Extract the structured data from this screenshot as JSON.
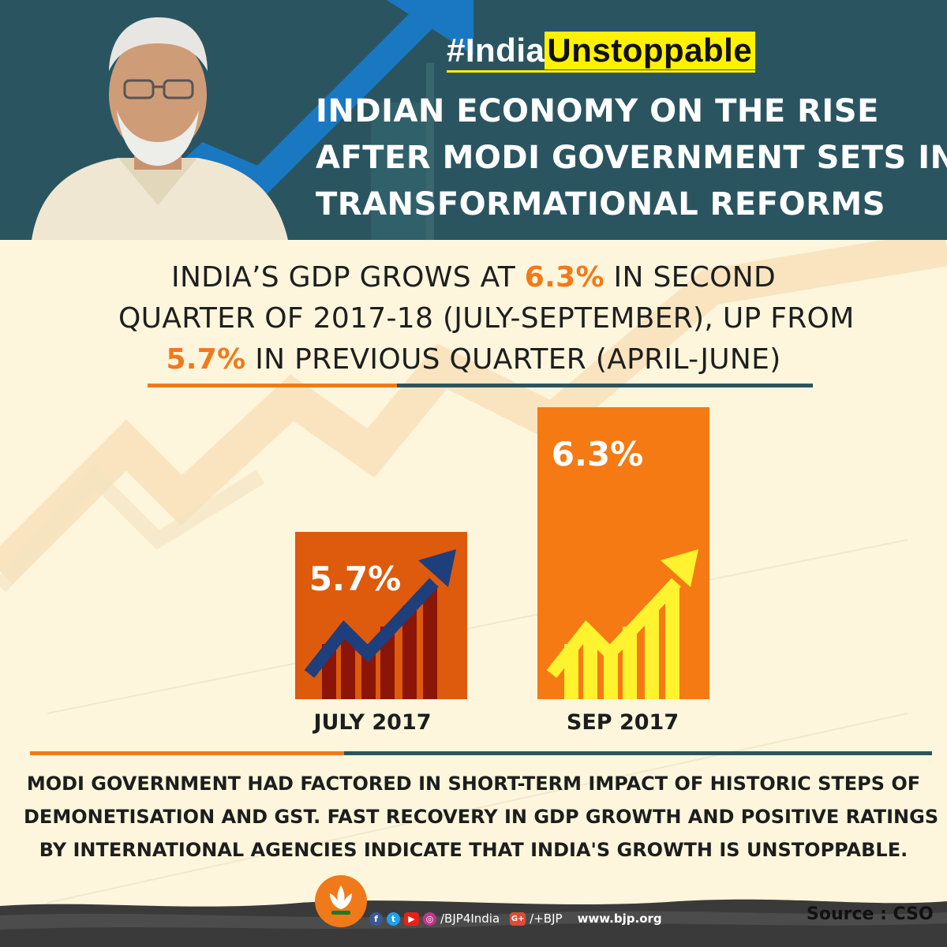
{
  "header": {
    "hashtag_prefix": "#India",
    "hashtag_highlight": "Unstoppable",
    "headline": [
      "INDIAN ECONOMY ON THE RISE",
      "AFTER MODI GOVERNMENT SETS IN",
      "TRANSFORMATIONAL REFORMS"
    ]
  },
  "subhead": {
    "line1_pre": "INDIA’S GDP GROWS AT ",
    "line1_hl": "6.3%",
    "line1_post": " IN SECOND",
    "line2": "QUARTER OF 2017-18 (JULY-SEPTEMBER), UP FROM",
    "line3_hl": "5.7%",
    "line3_post": " IN PREVIOUS QUARTER (APRIL-JUNE)"
  },
  "chart_data": {
    "type": "bar",
    "categories": [
      "JULY 2017",
      "SEP 2017"
    ],
    "values": [
      5.7,
      6.3
    ],
    "value_labels": [
      "5.7%",
      "6.3%"
    ],
    "bar_colors": [
      "#de5a0c",
      "#f57a14"
    ],
    "icon_colors": [
      {
        "bars": "#8b1506",
        "arrow": "#1e3e7c"
      },
      {
        "bars": "#fff22e",
        "arrow": "#fff22e"
      }
    ],
    "title": "",
    "xlabel": "",
    "ylabel": "",
    "grid": false,
    "legend": "none"
  },
  "note": [
    "MODI GOVERNMENT HAD FACTORED IN SHORT-TERM IMPACT OF HISTORIC STEPS OF",
    "DEMONETISATION AND GST. FAST RECOVERY IN GDP GROWTH AND POSITIVE RATINGS",
    "BY INTERNATIONAL AGENCIES INDICATE THAT INDIA'S GROWTH IS UNSTOPPABLE."
  ],
  "footer": {
    "social_icons": [
      "facebook-icon",
      "twitter-icon",
      "youtube-icon",
      "instagram-icon",
      "google-plus-icon"
    ],
    "handle1": "/BJP4India",
    "gplus_glyph": "G+",
    "handle2": "/+BJP",
    "website": "www.bjp.org",
    "source": "Source : CSO"
  },
  "colors": {
    "teal": "#2a5560",
    "orange": "#f07a1a",
    "yellow": "#fff200",
    "cream": "#fdf6dc"
  }
}
